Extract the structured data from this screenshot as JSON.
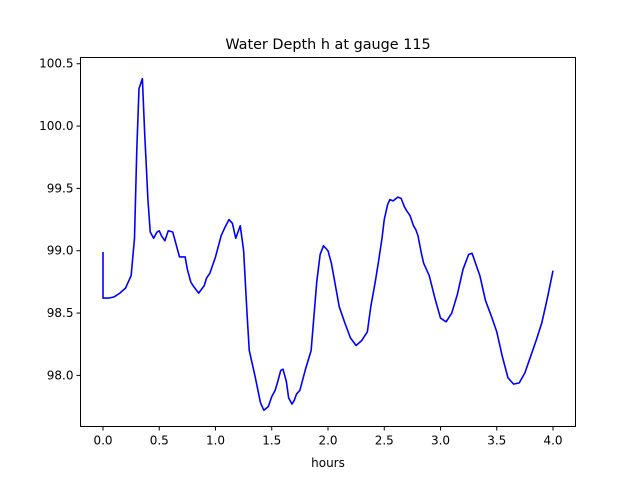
{
  "chart_data": {
    "type": "line",
    "title": "Water Depth h at gauge 115",
    "xlabel": "hours",
    "ylabel": "",
    "xlim": [
      -0.2,
      4.2
    ],
    "ylim": [
      97.59,
      100.55
    ],
    "xticks": [
      0.0,
      0.5,
      1.0,
      1.5,
      2.0,
      2.5,
      3.0,
      3.5,
      4.0
    ],
    "xtick_labels": [
      "0.0",
      "0.5",
      "1.0",
      "1.5",
      "2.0",
      "2.5",
      "3.0",
      "3.5",
      "4.0"
    ],
    "yticks": [
      98.0,
      98.5,
      99.0,
      99.5,
      100.0,
      100.5
    ],
    "ytick_labels": [
      "98.0",
      "98.5",
      "99.0",
      "99.5",
      "100.0",
      "100.5"
    ],
    "grid": false,
    "series": [
      {
        "name": "",
        "color": "#0000ff",
        "x": [
          0.0,
          0.0,
          0.05,
          0.1,
          0.15,
          0.2,
          0.25,
          0.28,
          0.3,
          0.32,
          0.35,
          0.37,
          0.4,
          0.42,
          0.45,
          0.48,
          0.5,
          0.52,
          0.55,
          0.58,
          0.62,
          0.65,
          0.68,
          0.7,
          0.73,
          0.75,
          0.78,
          0.8,
          0.85,
          0.9,
          0.92,
          0.95,
          1.0,
          1.05,
          1.08,
          1.12,
          1.15,
          1.18,
          1.2,
          1.22,
          1.25,
          1.28,
          1.3,
          1.35,
          1.4,
          1.43,
          1.47,
          1.5,
          1.53,
          1.55,
          1.58,
          1.6,
          1.63,
          1.65,
          1.68,
          1.7,
          1.72,
          1.75,
          1.8,
          1.85,
          1.9,
          1.93,
          1.96,
          2.0,
          2.03,
          2.05,
          2.1,
          2.15,
          2.2,
          2.25,
          2.3,
          2.35,
          2.38,
          2.42,
          2.45,
          2.48,
          2.5,
          2.53,
          2.55,
          2.58,
          2.62,
          2.65,
          2.68,
          2.7,
          2.73,
          2.76,
          2.78,
          2.8,
          2.83,
          2.85,
          2.9,
          2.95,
          3.0,
          3.05,
          3.1,
          3.15,
          3.2,
          3.25,
          3.28,
          3.3,
          3.33,
          3.35,
          3.4,
          3.45,
          3.5,
          3.55,
          3.6,
          3.65,
          3.7,
          3.75,
          3.8,
          3.85,
          3.9,
          3.95,
          4.0
        ],
        "values": [
          98.99,
          98.62,
          98.62,
          98.63,
          98.66,
          98.7,
          98.8,
          99.1,
          99.8,
          100.3,
          100.38,
          99.95,
          99.4,
          99.15,
          99.1,
          99.15,
          99.16,
          99.12,
          99.08,
          99.16,
          99.15,
          99.05,
          98.95,
          98.95,
          98.95,
          98.85,
          98.75,
          98.72,
          98.66,
          98.72,
          98.78,
          98.82,
          98.95,
          99.12,
          99.18,
          99.25,
          99.22,
          99.1,
          99.15,
          99.2,
          99.0,
          98.5,
          98.2,
          98.0,
          97.78,
          97.72,
          97.75,
          97.83,
          97.88,
          97.94,
          98.04,
          98.05,
          97.95,
          97.82,
          97.77,
          97.8,
          97.85,
          97.88,
          98.05,
          98.2,
          98.75,
          98.97,
          99.04,
          99.0,
          98.9,
          98.8,
          98.55,
          98.42,
          98.3,
          98.24,
          98.28,
          98.35,
          98.55,
          98.75,
          98.92,
          99.1,
          99.25,
          99.37,
          99.41,
          99.4,
          99.43,
          99.42,
          99.35,
          99.32,
          99.28,
          99.2,
          99.17,
          99.12,
          98.98,
          98.9,
          98.8,
          98.62,
          98.46,
          98.43,
          98.5,
          98.65,
          98.85,
          98.97,
          98.98,
          98.93,
          98.85,
          98.8,
          98.6,
          98.48,
          98.35,
          98.15,
          97.98,
          97.93,
          97.94,
          98.02,
          98.15,
          98.28,
          98.42,
          98.62,
          98.84
        ]
      }
    ]
  }
}
